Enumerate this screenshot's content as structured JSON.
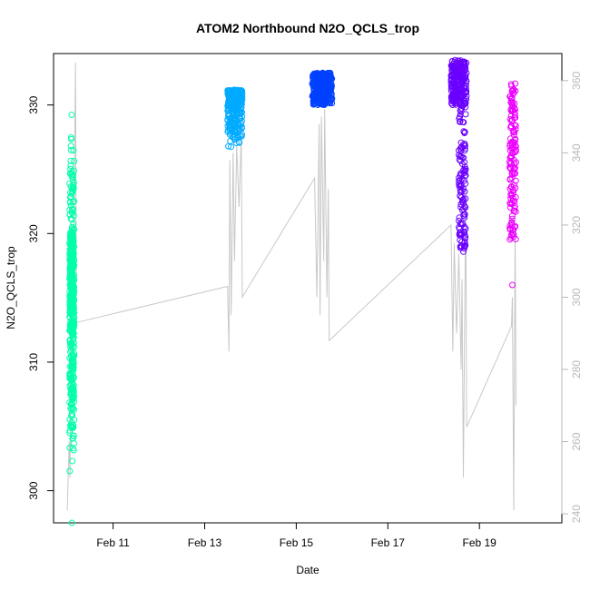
{
  "chart_data": {
    "type": "scatter",
    "title": "ATOM2 Northbound N2O_QCLS_trop",
    "xlabel": "Date",
    "ylabel": "N2O_QCLS_trop",
    "x_ticks": [
      {
        "label": "Feb 11",
        "day": 11
      },
      {
        "label": "Feb 13",
        "day": 13
      },
      {
        "label": "Feb 15",
        "day": 15
      },
      {
        "label": "Feb 17",
        "day": 17
      },
      {
        "label": "Feb 19",
        "day": 19
      }
    ],
    "xlim_days": [
      9.7,
      20.8
    ],
    "ylim": [
      297.5,
      334.0
    ],
    "y_ticks": [
      300,
      310,
      320,
      330
    ],
    "y2_ticks": [
      240,
      260,
      280,
      300,
      320,
      340,
      360
    ],
    "y2lim": [
      237.5,
      367.5
    ],
    "grid": false,
    "series": [
      {
        "color": "#00FFAA",
        "clusters": [
          {
            "x": [
              10.05,
              10.15
            ],
            "y": [
              299,
              330.5
            ],
            "n": 420,
            "weight": "mid"
          },
          {
            "x": [
              10.06,
              10.14
            ],
            "y": [
              317,
              320
            ],
            "n": 40,
            "weight": "uniform"
          }
        ],
        "outliers": [
          [
            10.1,
            297.5
          ],
          [
            10.14,
            323.5
          ]
        ]
      },
      {
        "color": "#00AAFF",
        "clusters": [
          {
            "x": [
              13.5,
              13.82
            ],
            "y": [
              326.5,
              331.2
            ],
            "n": 260,
            "weight": "rising"
          }
        ],
        "outliers": []
      },
      {
        "color": "#0040FF",
        "clusters": [
          {
            "x": [
              15.35,
              15.78
            ],
            "y": [
              330,
              332.5
            ],
            "n": 320,
            "weight": "uniform"
          }
        ],
        "outliers": []
      },
      {
        "color": "#6A00FF",
        "clusters": [
          {
            "x": [
              18.38,
              18.72
            ],
            "y": [
              330,
              333.5
            ],
            "n": 230,
            "weight": "uniform"
          },
          {
            "x": [
              18.55,
              18.7
            ],
            "y": [
              318.5,
              330
            ],
            "n": 120,
            "weight": "uniform"
          }
        ],
        "outliers": []
      },
      {
        "color": "#EE00FF",
        "clusters": [
          {
            "x": [
              19.66,
              19.8
            ],
            "y": [
              319.5,
              331.8
            ],
            "n": 140,
            "weight": "uniform"
          }
        ],
        "outliers": [
          [
            19.72,
            316
          ]
        ]
      }
    ],
    "secondary_series": {
      "color": "#c8c8c8",
      "axis": "right",
      "points": [
        [
          10.0,
          241
        ],
        [
          10.04,
          260
        ],
        [
          10.06,
          250
        ],
        [
          10.08,
          305
        ],
        [
          10.1,
          280
        ],
        [
          10.12,
          320
        ],
        [
          10.14,
          300
        ],
        [
          10.16,
          340
        ],
        [
          10.18,
          365
        ],
        [
          10.2,
          293
        ],
        [
          13.5,
          303
        ],
        [
          13.53,
          285
        ],
        [
          13.55,
          338
        ],
        [
          13.58,
          295
        ],
        [
          13.62,
          340
        ],
        [
          13.65,
          310
        ],
        [
          13.7,
          342
        ],
        [
          13.75,
          325
        ],
        [
          13.8,
          345
        ],
        [
          13.82,
          300
        ],
        [
          15.4,
          333
        ],
        [
          15.45,
          300
        ],
        [
          15.5,
          348
        ],
        [
          15.52,
          295
        ],
        [
          15.55,
          350
        ],
        [
          15.6,
          310
        ],
        [
          15.62,
          352
        ],
        [
          15.67,
          300
        ],
        [
          15.7,
          330
        ],
        [
          15.72,
          288
        ],
        [
          18.38,
          320
        ],
        [
          18.42,
          285
        ],
        [
          18.45,
          315
        ],
        [
          18.5,
          290
        ],
        [
          18.55,
          312
        ],
        [
          18.6,
          280
        ],
        [
          18.62,
          305
        ],
        [
          18.65,
          250
        ],
        [
          18.7,
          330
        ],
        [
          18.72,
          264
        ],
        [
          19.7,
          292
        ],
        [
          19.72,
          300
        ],
        [
          19.75,
          241
        ],
        [
          19.78,
          320
        ],
        [
          19.8,
          270
        ]
      ]
    }
  }
}
